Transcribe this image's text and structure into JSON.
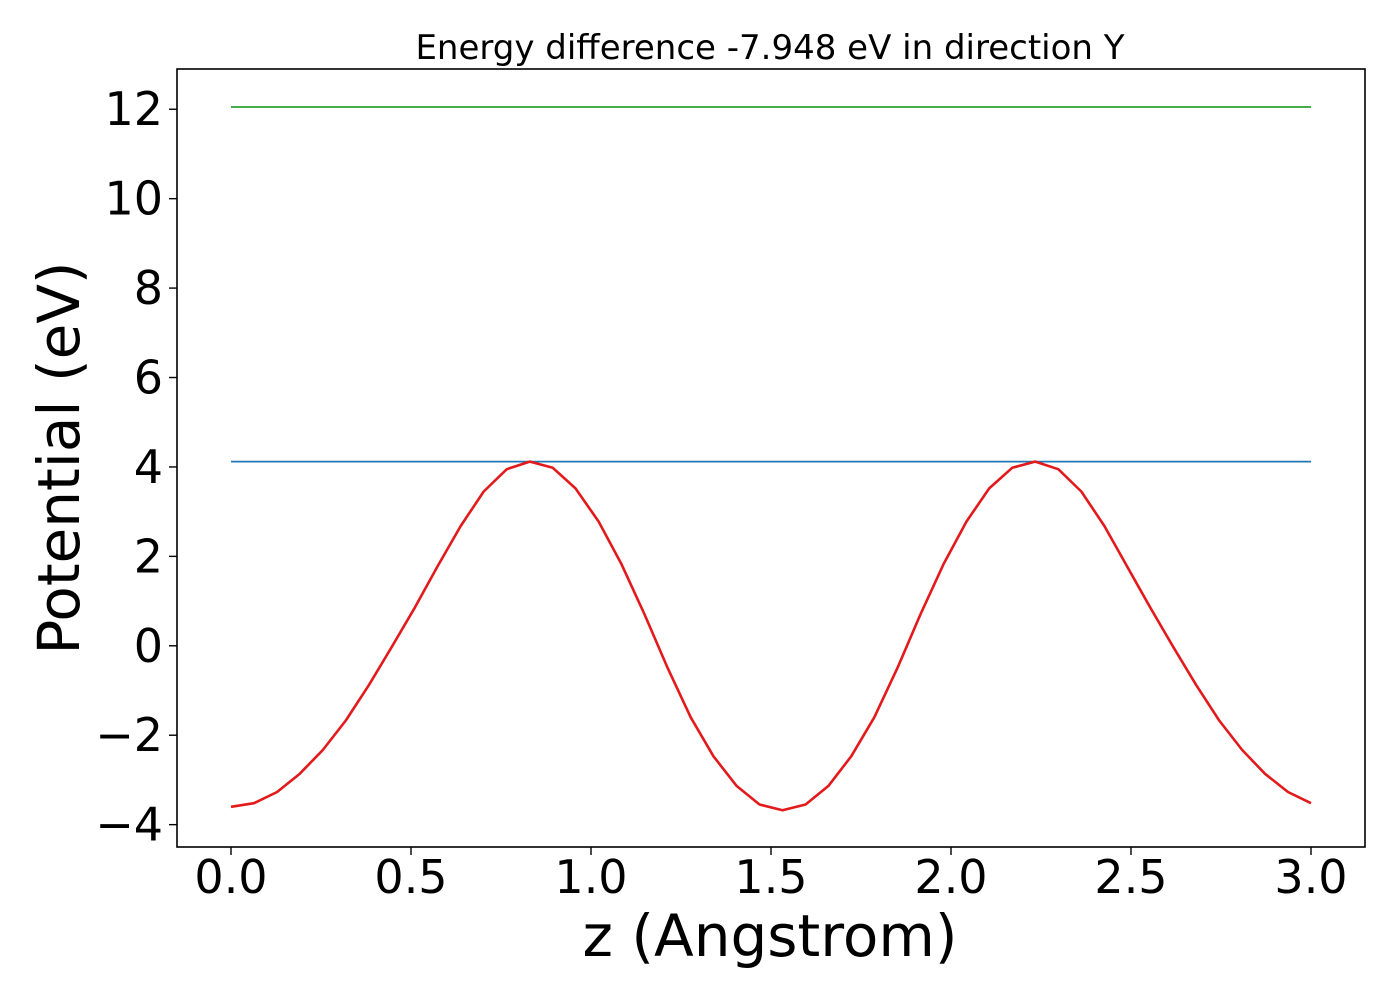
{
  "chart_data": {
    "type": "line",
    "title": "Energy difference -7.948 eV in direction Y",
    "xlabel": "z (Angstrom)",
    "ylabel": "Potential (eV)",
    "xlim": [
      -0.15,
      3.15
    ],
    "ylim": [
      -4.5,
      12.9
    ],
    "x_ticks": [
      0.0,
      0.5,
      1.0,
      1.5,
      2.0,
      2.5,
      3.0
    ],
    "x_tick_labels": [
      "0.0",
      "0.5",
      "1.0",
      "1.5",
      "2.0",
      "2.5",
      "3.0"
    ],
    "y_ticks": [
      -4,
      -2,
      0,
      2,
      4,
      6,
      8,
      10,
      12
    ],
    "y_tick_labels": [
      "−4",
      "−2",
      "0",
      "2",
      "4",
      "6",
      "8",
      "10",
      "12"
    ],
    "grid": false,
    "series": [
      {
        "color": "#2ca02c",
        "x": [
          0.0,
          3.0
        ],
        "y": [
          12.05,
          12.05
        ]
      },
      {
        "color": "#1f77b4",
        "x": [
          0.0,
          3.0
        ],
        "y": [
          4.12,
          4.12
        ]
      },
      {
        "color": "#e31a1c",
        "x": [
          0.0,
          0.064,
          0.128,
          0.191,
          0.255,
          0.319,
          0.383,
          0.447,
          0.511,
          0.574,
          0.638,
          0.702,
          0.766,
          0.83,
          0.894,
          0.957,
          1.021,
          1.085,
          1.149,
          1.213,
          1.277,
          1.34,
          1.404,
          1.468,
          1.532,
          1.596,
          1.66,
          1.723,
          1.787,
          1.851,
          1.915,
          1.979,
          2.043,
          2.106,
          2.17,
          2.234,
          2.298,
          2.362,
          2.426,
          2.489,
          2.553,
          2.617,
          2.681,
          2.745,
          2.809,
          2.872,
          2.936,
          3.0
        ],
        "y": [
          -3.6,
          -3.52,
          -3.27,
          -2.86,
          -2.33,
          -1.67,
          -0.88,
          -0.02,
          0.86,
          1.78,
          2.68,
          3.45,
          3.95,
          4.12,
          3.98,
          3.52,
          2.78,
          1.82,
          0.7,
          -0.5,
          -1.6,
          -2.47,
          -3.13,
          -3.55,
          -3.68,
          -3.55,
          -3.13,
          -2.47,
          -1.6,
          -0.5,
          0.7,
          1.82,
          2.78,
          3.52,
          3.98,
          4.12,
          3.95,
          3.45,
          2.68,
          1.78,
          0.86,
          -0.02,
          -0.88,
          -1.67,
          -2.33,
          -2.86,
          -3.27,
          -3.52
        ]
      }
    ]
  }
}
